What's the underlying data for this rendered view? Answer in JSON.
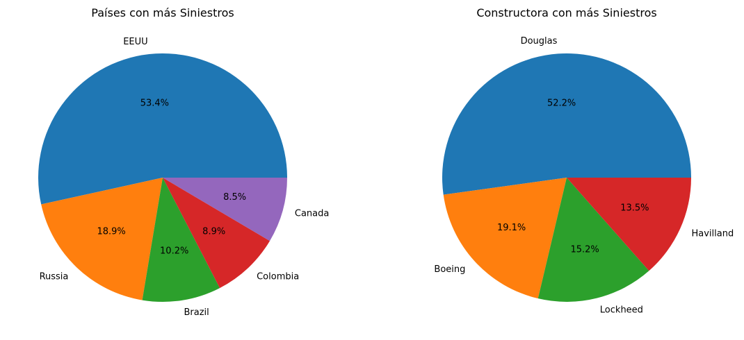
{
  "chart_data": [
    {
      "type": "pie",
      "title": "Países con más Siniestros",
      "categories": [
        "EEUU",
        "Russia",
        "Brazil",
        "Colombia",
        "Canada"
      ],
      "values": [
        53.4,
        18.9,
        10.2,
        8.9,
        8.5
      ],
      "value_labels": [
        "53.4%",
        "18.9%",
        "10.2%",
        "8.9%",
        "8.5%"
      ],
      "colors": [
        "#1f77b4",
        "#ff7f0e",
        "#2ca02c",
        "#d62728",
        "#9467bd"
      ],
      "start_angle_deg": 0,
      "direction": "counterclockwise"
    },
    {
      "type": "pie",
      "title": "Constructora con más Siniestros",
      "categories": [
        "Douglas",
        "Boeing",
        "Lockheed",
        "Havilland"
      ],
      "values": [
        52.2,
        19.1,
        15.2,
        13.5
      ],
      "value_labels": [
        "52.2%",
        "19.1%",
        "15.2%",
        "13.5%"
      ],
      "colors": [
        "#1f77b4",
        "#ff7f0e",
        "#2ca02c",
        "#d62728"
      ],
      "start_angle_deg": 0,
      "direction": "counterclockwise"
    }
  ]
}
